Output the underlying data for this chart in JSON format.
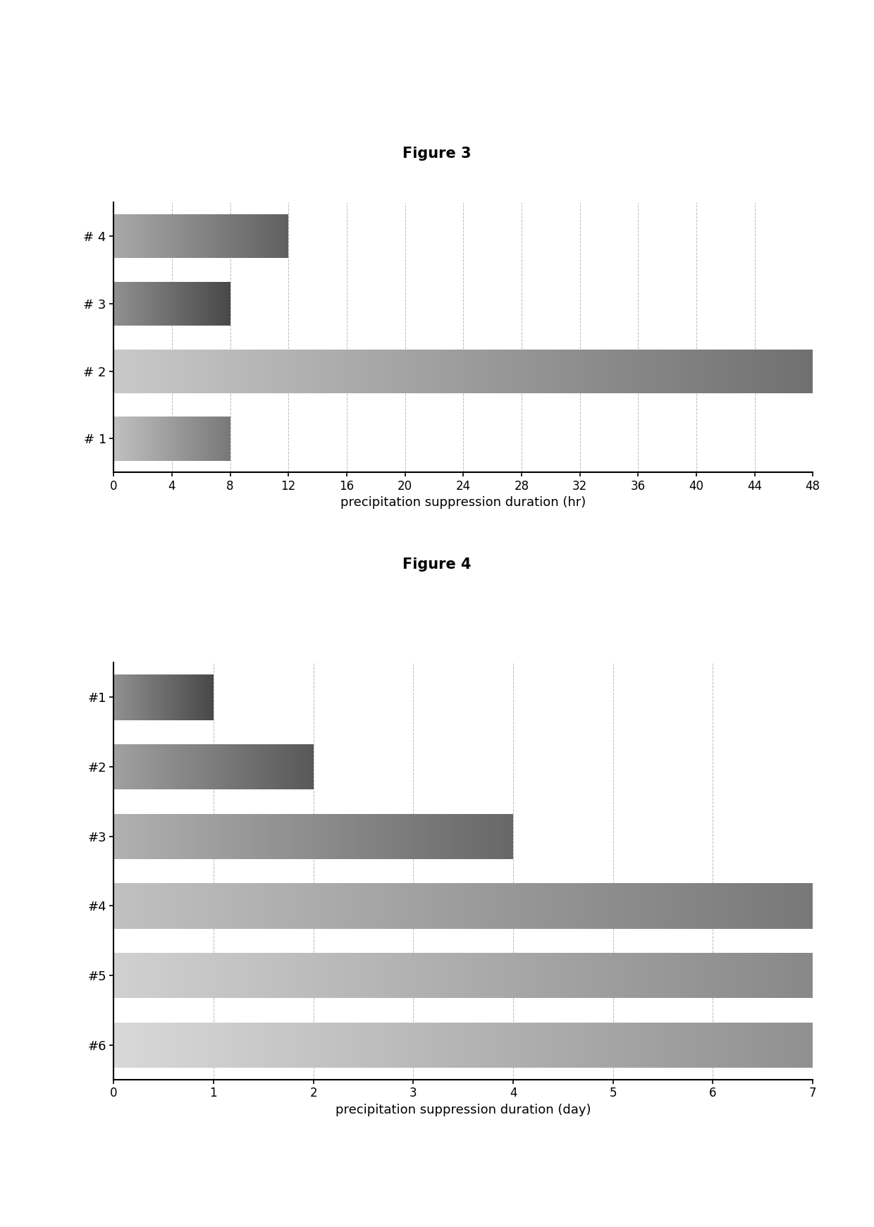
{
  "fig3": {
    "title": "Figure 3",
    "categories": [
      "# 1",
      "# 2",
      "# 3",
      "# 4"
    ],
    "values": [
      8,
      48,
      8,
      12
    ],
    "xlabel": "precipitation suppression duration (hr)",
    "xlim": [
      0,
      48
    ],
    "xticks": [
      0,
      4,
      8,
      12,
      16,
      20,
      24,
      28,
      32,
      36,
      40,
      44,
      48
    ],
    "bar_start_colors": [
      "#c0c0c0",
      "#c8c8c8",
      "#909090",
      "#a8a8a8"
    ],
    "bar_end_colors": [
      "#787878",
      "#707070",
      "#484848",
      "#606060"
    ]
  },
  "fig4": {
    "title": "Figure 4",
    "categories": [
      "#1",
      "#2",
      "#3",
      "#4",
      "#5",
      "#6"
    ],
    "values": [
      1,
      2,
      4,
      7,
      7,
      7
    ],
    "xlabel": "precipitation suppression duration (day)",
    "xlim": [
      0,
      7
    ],
    "xticks": [
      0,
      1,
      2,
      3,
      4,
      5,
      6,
      7
    ],
    "bar_start_colors": [
      "#909090",
      "#a0a0a0",
      "#b0b0b0",
      "#c0c0c0",
      "#d0d0d0",
      "#d8d8d8"
    ],
    "bar_end_colors": [
      "#484848",
      "#585858",
      "#686868",
      "#787878",
      "#888888",
      "#909090"
    ]
  },
  "background_color": "#ffffff",
  "title_fontsize": 15,
  "label_fontsize": 13,
  "tick_fontsize": 12
}
